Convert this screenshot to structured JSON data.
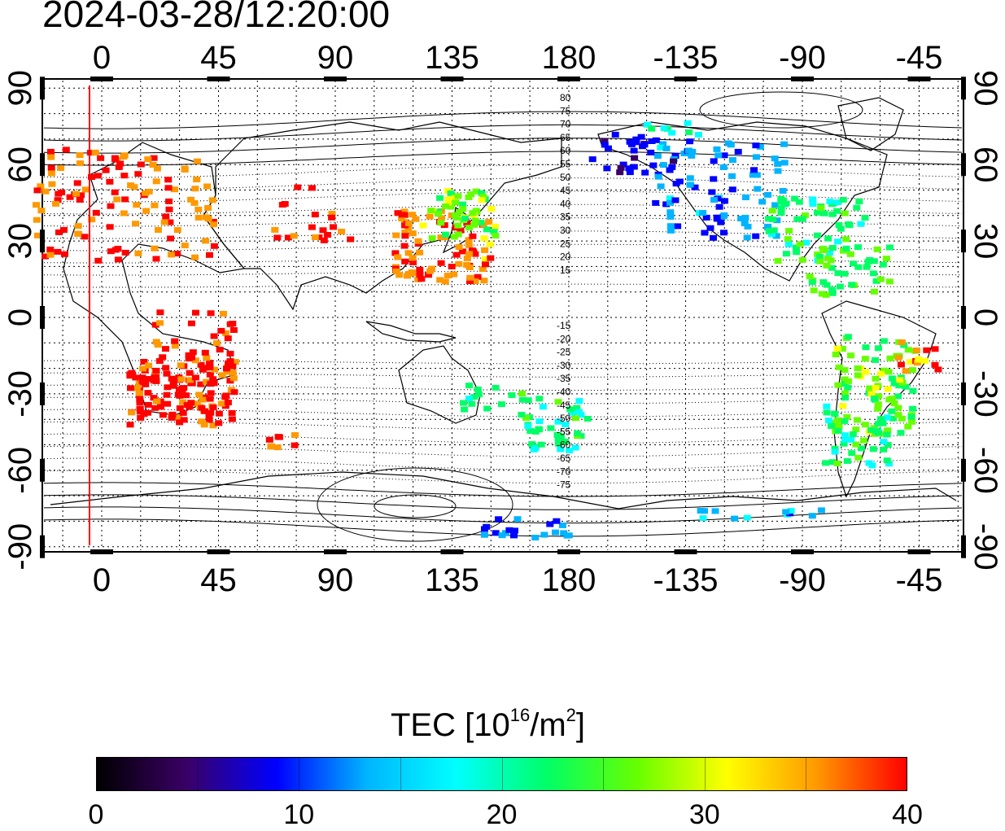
{
  "timestamp": "2024-03-28/12:20:00",
  "map": {
    "x_tick_labels": [
      "0",
      "45",
      "90",
      "135",
      "180",
      "-135",
      "-90",
      "-45"
    ],
    "y_tick_labels_left": [
      "90",
      "60",
      "30",
      "0",
      "-30",
      "-60",
      "-90"
    ],
    "y_tick_labels_right": [
      "90",
      "60",
      "30",
      "0",
      "-30",
      "-60",
      "-90"
    ],
    "north_contour_labels": [
      "80",
      "75",
      "70",
      "65",
      "60",
      "55",
      "50",
      "45",
      "40",
      "35",
      "30",
      "25",
      "20",
      "15"
    ],
    "south_contour_labels": [
      "-15",
      "-20",
      "-25",
      "-30",
      "-35",
      "-40",
      "-45",
      "-50",
      "-55",
      "-60",
      "-65",
      "-70",
      "-75"
    ],
    "terminator_line_color": "#ff0000",
    "grid": "dotted"
  },
  "colorbar": {
    "title_prefix": "TEC  [10",
    "title_exp1": "16",
    "title_mid": "/m",
    "title_exp2": "2",
    "title_suffix": "]",
    "min": 0,
    "max": 40,
    "tick_labels": [
      "0",
      "10",
      "20",
      "30",
      "40"
    ],
    "palette": [
      "#000000",
      "#3a0066",
      "#0000ff",
      "#00b4ff",
      "#00ffff",
      "#00ff66",
      "#66ff00",
      "#ffff00",
      "#ff9900",
      "#ff0000"
    ]
  }
}
